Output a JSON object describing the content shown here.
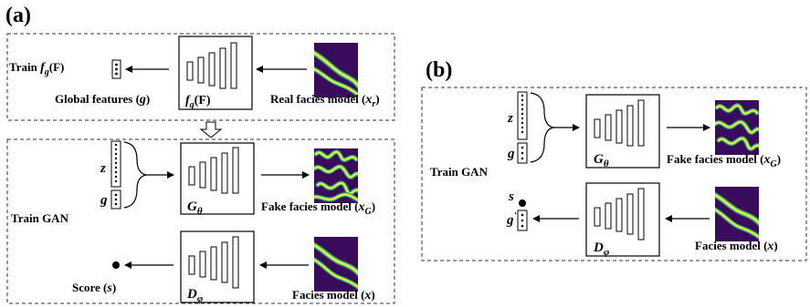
{
  "panel_a": {
    "label": "(a)",
    "top": {
      "train_prefix": "Train ",
      "train_fn": "f",
      "train_fn_sub": "g",
      "train_fn_arg": "(F)",
      "global_label": "Global features (",
      "global_var": "g",
      "global_close": ")",
      "net_fn": "f",
      "net_fn_sub": "g",
      "net_fn_arg": "(F)",
      "real_label": "Real facies model (",
      "real_var": "x",
      "real_sub": "r",
      "real_close": ")"
    },
    "bottom": {
      "train_gan": "Train GAN",
      "z": "z",
      "g": "g",
      "generator": "G",
      "generator_sub": "θ",
      "fake_label": "Fake facies model (",
      "fake_var": "x",
      "fake_sub": "G",
      "fake_close": ")",
      "score_label": "Score (",
      "score_var": "s",
      "score_close": ")",
      "discriminator": "D",
      "discriminator_sub": "φ",
      "facies_label": "Facies model (",
      "facies_var": "x",
      "facies_close": ")"
    }
  },
  "panel_b": {
    "label": "(b)",
    "train_gan": "Train GAN",
    "z": "z",
    "g": "g",
    "generator": "G",
    "generator_sub": "θ",
    "fake_label": "Fake facies model (",
    "fake_var": "x",
    "fake_sub": "G",
    "fake_close": ")",
    "s": "s",
    "g_prime": "g",
    "g_prime_mark": "'",
    "discriminator": "D",
    "discriminator_sub": "φ",
    "facies_label": "Facies model (",
    "facies_var": "x",
    "facies_close": ")"
  },
  "colors": {
    "facies_bg": "#3a0a5c",
    "channel": "#d8f03a",
    "channel_edge": "#2a9b8a"
  }
}
